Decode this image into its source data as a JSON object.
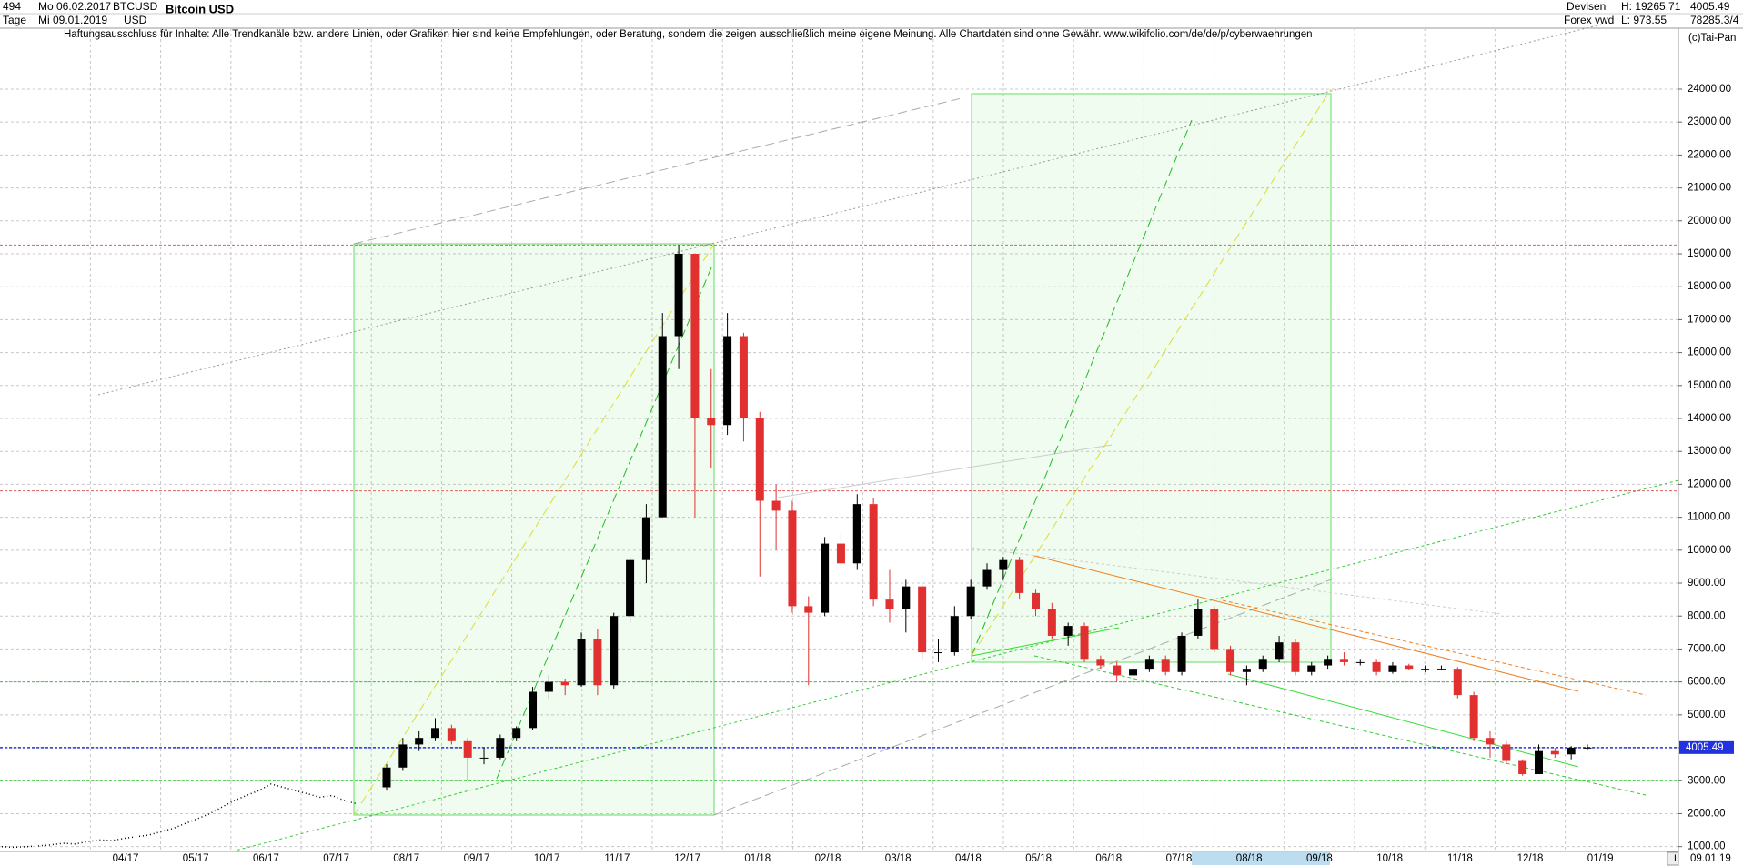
{
  "header": {
    "count": "494",
    "from": "Mo 06.02.2017",
    "symbol": "BTCUSD",
    "currency": "USD",
    "period": "Tage",
    "to": "Mi 09.01.2019",
    "title": "Bitcoin USD",
    "market": "Devisen",
    "source": "Forex vwd",
    "high": "H: 19265.71",
    "low": "L: 973.55",
    "last": "4005.49",
    "volume": "78285.3/4",
    "disclaimer": "Haftungsausschluss für Inhalte: Alle Trendkanäle bzw. andere Linien, oder Grafiken hier sind keine Empfehlungen, oder Beratung, sondern die zeigen ausschließlich meine eigene Meinung. Alle Chartdaten sind ohne Gewähr.  www.wikifolio.com/de/de/p/cyberwaehrungen",
    "copyright": "(c)Tai-Pan",
    "date_end": "09.01.19",
    "scale_mode": "L"
  },
  "chart_data": {
    "type": "candlestick",
    "categories": [
      "04/17",
      "05/17",
      "06/17",
      "07/17",
      "08/17",
      "09/17",
      "10/17",
      "11/17",
      "12/17",
      "01/18",
      "02/18",
      "03/18",
      "04/18",
      "05/18",
      "06/18",
      "07/18",
      "08/18",
      "09/18",
      "10/18",
      "11/18",
      "12/18",
      "01/19"
    ],
    "pre_values": [
      1000,
      980,
      1000,
      1020,
      1050,
      1100,
      1080,
      1150,
      1200,
      1180,
      1250,
      1300,
      1350,
      1450,
      1550,
      1700,
      1850,
      2000,
      2200,
      2400,
      2550,
      2700,
      2900,
      2800,
      2700,
      2600,
      2500,
      2550,
      2400,
      2300
    ],
    "open": [
      2800,
      3400,
      4100,
      4300,
      4600,
      4200,
      3700,
      3700,
      4300,
      4600,
      5700,
      6000,
      5900,
      7300,
      5900,
      8000,
      9700,
      11000,
      16500,
      19000,
      14000,
      13800,
      16500,
      14000,
      11500,
      11200,
      8300,
      8100,
      10200,
      9600,
      11400,
      8500,
      8200,
      8900,
      6900,
      6900,
      8000,
      8900,
      9400,
      9700,
      8700,
      8200,
      7400,
      7700,
      6700,
      6500,
      6200,
      6400,
      6700,
      6300,
      7400,
      8200,
      7000,
      6300,
      6400,
      6700,
      7200,
      6300,
      6500,
      6700,
      6600,
      6600,
      6300,
      6500,
      6400,
      6400,
      6400,
      5600,
      4300,
      4100,
      3600,
      3200,
      3900,
      3800,
      4000
    ],
    "high": [
      3500,
      4300,
      4500,
      4900,
      4700,
      4300,
      4000,
      4400,
      4650,
      5850,
      6200,
      6100,
      7500,
      7600,
      8100,
      9800,
      11400,
      17200,
      19265,
      19000,
      15500,
      17200,
      16600,
      14200,
      12000,
      11500,
      8600,
      10400,
      10500,
      11700,
      11600,
      9400,
      9100,
      8950,
      7300,
      8300,
      9100,
      9600,
      9800,
      9800,
      8800,
      8400,
      7800,
      7800,
      6800,
      6600,
      6500,
      6800,
      6800,
      7500,
      8500,
      8300,
      7100,
      6500,
      6800,
      7400,
      7300,
      6600,
      6800,
      6900,
      6700,
      6700,
      6600,
      6550,
      6500,
      6500,
      6450,
      5700,
      4500,
      4200,
      3650,
      4100,
      4000,
      4050,
      4100
    ],
    "low": [
      2700,
      3300,
      3900,
      4200,
      4100,
      3000,
      3500,
      3650,
      4200,
      4550,
      5500,
      5600,
      5850,
      5600,
      5800,
      7800,
      9000,
      11000,
      15500,
      11000,
      12500,
      13500,
      13300,
      9200,
      10000,
      8100,
      5900,
      8000,
      9500,
      9400,
      8300,
      7800,
      7500,
      6700,
      6600,
      6800,
      7900,
      8800,
      9100,
      8500,
      8000,
      7300,
      7100,
      6600,
      6400,
      6000,
      5900,
      6300,
      6200,
      6200,
      7300,
      6900,
      6200,
      5900,
      6300,
      6600,
      6200,
      6200,
      6400,
      6500,
      6500,
      6200,
      6250,
      6350,
      6300,
      6350,
      5500,
      4200,
      3700,
      3500,
      3150,
      3200,
      3700,
      3650,
      3950
    ],
    "close": [
      3400,
      4100,
      4300,
      4600,
      4200,
      3700,
      3700,
      4300,
      4600,
      5700,
      6000,
      5900,
      7300,
      5900,
      8000,
      9700,
      11000,
      16500,
      19000,
      14000,
      13800,
      16500,
      14000,
      11500,
      11200,
      8300,
      8100,
      10200,
      9600,
      11400,
      8500,
      8200,
      8900,
      6900,
      6900,
      8000,
      8900,
      9400,
      9700,
      8700,
      8200,
      7400,
      7700,
      6700,
      6500,
      6200,
      6400,
      6700,
      6300,
      7400,
      8200,
      7000,
      6300,
      6400,
      6700,
      7200,
      6300,
      6500,
      6700,
      6600,
      6600,
      6300,
      6500,
      6400,
      6400,
      6400,
      5600,
      4300,
      4100,
      3600,
      3200,
      3900,
      3800,
      4000,
      4005
    ],
    "up_color": "#000000",
    "down_color": "#e03030",
    "levels": [
      {
        "value": 19265.71,
        "color": "#e06060"
      },
      {
        "value": 11800,
        "color": "#e06060"
      },
      {
        "value": 6000,
        "color": "#33cc33"
      },
      {
        "value": 3000,
        "color": "#33cc33"
      },
      {
        "value": 4005.49,
        "color": "#2233dd"
      }
    ],
    "price_tag": {
      "value": 4005.49,
      "label": "4005.49"
    },
    "ylim": [
      880,
      25850
    ],
    "yticks": [
      {
        "value": 1000,
        "label": "1000.00"
      },
      {
        "value": 2000,
        "label": "2000.00"
      },
      {
        "value": 3000,
        "label": "3000.00"
      },
      {
        "value": 4000,
        "label": "4000.00"
      },
      {
        "value": 5000,
        "label": "5000.00"
      },
      {
        "value": 6000,
        "label": "6000.00"
      },
      {
        "value": 7000,
        "label": "7000.00"
      },
      {
        "value": 8000,
        "label": "8000.00"
      },
      {
        "value": 9000,
        "label": "9000.00"
      },
      {
        "value": 10000,
        "label": "10000.00"
      },
      {
        "value": 11000,
        "label": "11000.00"
      },
      {
        "value": 12000,
        "label": "12000.00"
      },
      {
        "value": 13000,
        "label": "13000.00"
      },
      {
        "value": 14000,
        "label": "14000.00"
      },
      {
        "value": 15000,
        "label": "15000.00"
      },
      {
        "value": 16000,
        "label": "16000.00"
      },
      {
        "value": 17000,
        "label": "17000.00"
      },
      {
        "value": 18000,
        "label": "18000.00"
      },
      {
        "value": 19000,
        "label": "19000.00"
      },
      {
        "value": 20000,
        "label": "20000.00"
      },
      {
        "value": 21000,
        "label": "21000.00"
      },
      {
        "value": 22000,
        "label": "22000.00"
      },
      {
        "value": 23000,
        "label": "23000.00"
      },
      {
        "value": 24000,
        "label": "24000.00"
      }
    ],
    "grid": true
  }
}
